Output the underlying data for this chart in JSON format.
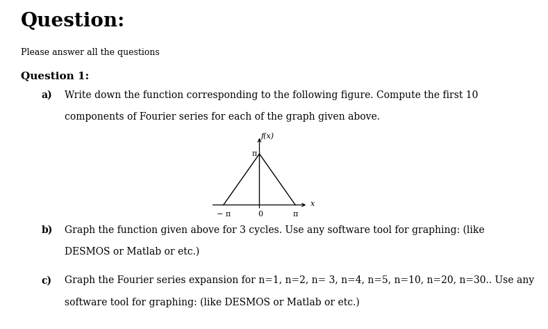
{
  "title": "Question:",
  "subtitle": "Please answer all the questions",
  "q1_header": "Question 1:",
  "q1a_label": "a)",
  "q1a_text_line1": "Write down the function corresponding to the following figure. Compute the first 10",
  "q1a_text_line2": "components of Fourier series for each of the graph given above.",
  "q1b_label": "b)",
  "q1b_text_line1": "Graph the function given above for 3 cycles. Use any software tool for graphing: (like",
  "q1b_text_line2": "DESMOS or Matlab or etc.)",
  "q1c_label": "c)",
  "q1c_text_line1": "Graph the Fourier series expansion for n=1, n=2, n= 3, n=4, n=5, n=10, n=20, n=30.. Use any",
  "q1c_text_line2": "software tool for graphing: (like DESMOS or Matlab or etc.)",
  "graph_fx_label": "f(x)",
  "graph_pi_y_label": "π",
  "graph_neg_pi_label": "− π",
  "graph_zero_label": "0",
  "graph_x_label": "x",
  "graph_pi_x_label": "π",
  "background_color": "#ffffff",
  "text_color": "#000000",
  "title_fontsize": 20,
  "subtitle_fontsize": 9,
  "header_fontsize": 11,
  "body_fontsize": 10,
  "graph_fontsize": 8
}
